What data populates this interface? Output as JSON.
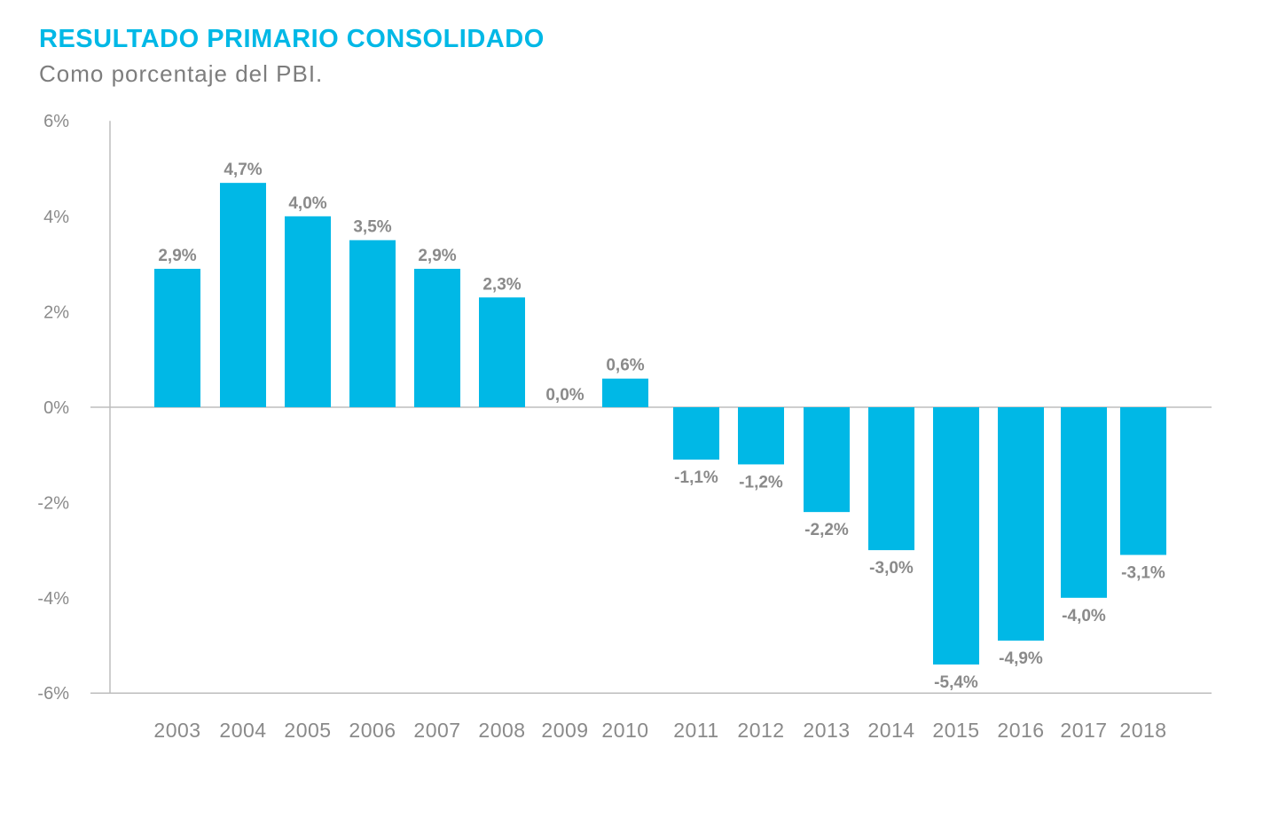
{
  "title": "RESULTADO PRIMARIO CONSOLIDADO",
  "subtitle": "Como porcentaje del PBI.",
  "colors": {
    "bar": "#00b8e6",
    "title": "#00b8e6",
    "text": "#8a8a8a",
    "axis": "#bdbdbd"
  },
  "chart_data": {
    "type": "bar",
    "title": "RESULTADO PRIMARIO CONSOLIDADO",
    "subtitle": "Como porcentaje del PBI.",
    "xlabel": "",
    "ylabel": "",
    "ylim": [
      -6,
      6
    ],
    "y_ticks": [
      6,
      4,
      2,
      0,
      -2,
      -4,
      -6
    ],
    "y_tick_labels": [
      "6%",
      "4%",
      "2%",
      "0%",
      "-2%",
      "-4%",
      "-6%"
    ],
    "grid": false,
    "categories": [
      "2003",
      "2004",
      "2005",
      "2006",
      "2007",
      "2008",
      "2009",
      "2010",
      "2011",
      "2012",
      "2013",
      "2014",
      "2015",
      "2016",
      "2017",
      "2018"
    ],
    "values": [
      2.9,
      4.7,
      4.0,
      3.5,
      2.9,
      2.3,
      0.0,
      0.6,
      -1.1,
      -1.2,
      -2.2,
      -3.0,
      -5.4,
      -4.9,
      -4.0,
      -3.1
    ],
    "data_labels": [
      "2,9%",
      "4,7%",
      "4,0%",
      "3,5%",
      "2,9%",
      "2,3%",
      "0,0%",
      "0,6%",
      "-1,1%",
      "-1,2%",
      "-2,2%",
      "-3,0%",
      "-5,4%",
      "-4,9%",
      "-4,0%",
      "-3,1%"
    ]
  }
}
